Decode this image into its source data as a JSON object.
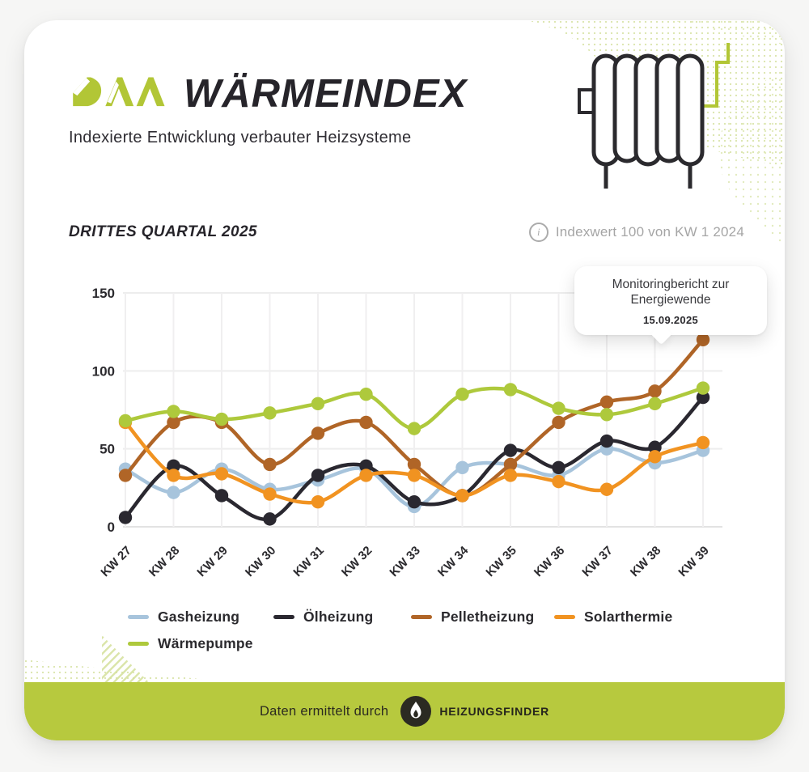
{
  "header": {
    "logo_text": "DAA",
    "title": "WÄRMEINDEX",
    "subtitle": "Indexierte Entwicklung verbauter Heizsysteme"
  },
  "section": {
    "title": "DRITTES QUARTAL 2025",
    "info_note": "Indexwert 100 von KW 1 2024"
  },
  "tooltip": {
    "line1": "Monitoringbericht zur",
    "line2": "Energiewende",
    "date": "15.09.2025"
  },
  "chart_data": {
    "type": "line",
    "title": "DRITTES QUARTAL 2025",
    "xlabel": "",
    "ylabel": "",
    "categories": [
      "KW 27",
      "KW 28",
      "KW 29",
      "KW 30",
      "KW 31",
      "KW 32",
      "KW 33",
      "KW 34",
      "KW 35",
      "KW 36",
      "KW 37",
      "KW 38",
      "KW 39"
    ],
    "series": [
      {
        "name": "Gasheizung",
        "color": "#a7c4dc",
        "values": [
          37,
          22,
          37,
          24,
          30,
          37,
          13,
          38,
          40,
          33,
          50,
          41,
          49
        ]
      },
      {
        "name": "Ölheizung",
        "color": "#2a2830",
        "values": [
          6,
          39,
          20,
          5,
          33,
          39,
          16,
          20,
          49,
          38,
          55,
          51,
          83
        ]
      },
      {
        "name": "Pelletheizung",
        "color": "#b06527",
        "values": [
          33,
          67,
          67,
          40,
          60,
          67,
          40,
          20,
          40,
          67,
          80,
          87,
          120
        ]
      },
      {
        "name": "Solarthermie",
        "color": "#f19321",
        "values": [
          67,
          33,
          34,
          21,
          16,
          33,
          33,
          20,
          33,
          29,
          24,
          45,
          54
        ]
      },
      {
        "name": "Wärmepumpe",
        "color": "#aec93c",
        "values": [
          68,
          74,
          69,
          73,
          79,
          85,
          63,
          85,
          88,
          76,
          72,
          79,
          89
        ]
      }
    ],
    "ylim": [
      0,
      150
    ],
    "yticks": [
      0,
      50,
      100,
      150
    ],
    "grid": true,
    "legend_position": "bottom",
    "annotation": {
      "text": "Monitoringbericht zur Energiewende",
      "date": "15.09.2025",
      "anchor": "KW 38"
    }
  },
  "footer": {
    "text": "Daten ermittelt durch",
    "brand": "HEIZUNGSFINDER"
  },
  "colors": {
    "accent_green": "#b2c636",
    "footer_bar_green": "#b7c93e",
    "halftone_green": "#dbe5ad",
    "text_dark": "#28262c",
    "muted_gray": "#a5a5a5"
  }
}
